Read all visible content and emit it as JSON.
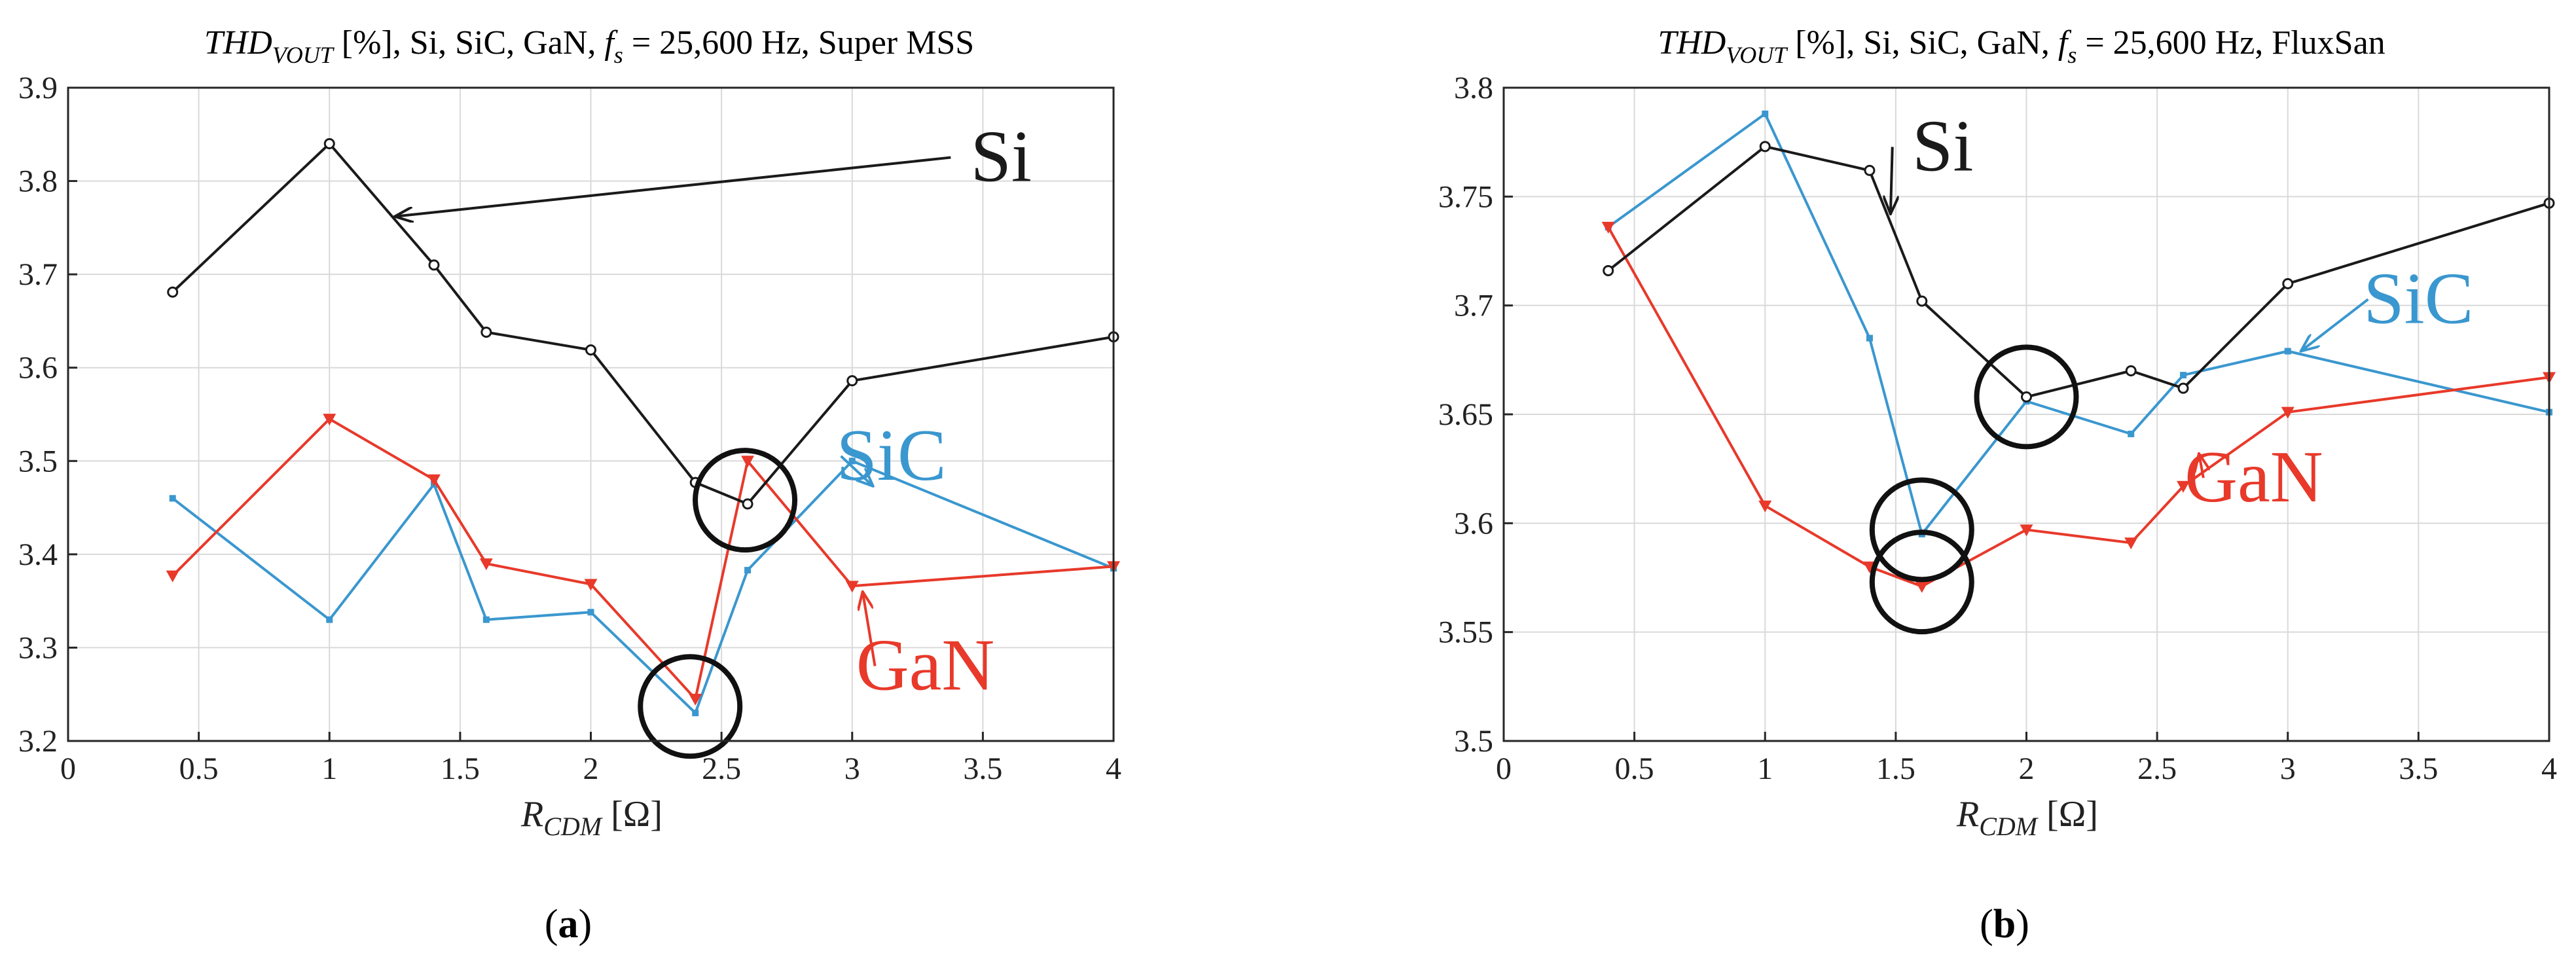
{
  "chart_data": [
    {
      "type": "line",
      "title": {
        "main": "THD",
        "sub": "VOUT",
        "rest": " [%], Si, SiC, GaN, ",
        "fs_main": "f",
        "fs_sub": "s",
        "fs_rest": " = 25,600 Hz, Super MSS"
      },
      "xlabel": {
        "main": "R",
        "sub": "CDM",
        "rest": " [Ω]"
      },
      "caption": {
        "open": "(",
        "letter": "a",
        "close": ")"
      },
      "xlim": [
        0,
        4
      ],
      "ylim": [
        3.2,
        3.9
      ],
      "xticks": [
        0,
        0.5,
        1,
        1.5,
        2,
        2.5,
        3,
        3.5,
        4
      ],
      "xtick_labels": [
        "0",
        "0.5",
        "1",
        "1.5",
        "2",
        "2.5",
        "3",
        "3.5",
        "4"
      ],
      "yticks": [
        3.2,
        3.3,
        3.4,
        3.5,
        3.6,
        3.7,
        3.8,
        3.9
      ],
      "ytick_labels": [
        "3.2",
        "3.3",
        "3.4",
        "3.5",
        "3.6",
        "3.7",
        "3.8",
        "3.9"
      ],
      "grid": true,
      "series": [
        {
          "name": "Si",
          "label": "Si",
          "color": "#1a1a1a",
          "marker": "circle",
          "x": [
            0.4,
            1,
            1.4,
            1.6,
            2,
            2.4,
            2.6,
            3,
            4
          ],
          "y": [
            3.681,
            3.84,
            3.71,
            3.638,
            3.619,
            3.477,
            3.454,
            3.586,
            3.633
          ]
        },
        {
          "name": "SiC",
          "label": "SiC",
          "color": "#3a97cf",
          "marker": "square",
          "x": [
            0.4,
            1,
            1.4,
            1.6,
            2,
            2.4,
            2.6,
            3,
            4
          ],
          "y": [
            3.46,
            3.33,
            3.475,
            3.33,
            3.338,
            3.23,
            3.383,
            3.5,
            3.385
          ]
        },
        {
          "name": "GaN",
          "label": "GaN",
          "color": "#e8392a",
          "marker": "triangle-down",
          "x": [
            0.4,
            1,
            1.4,
            1.6,
            2,
            2.4,
            2.6,
            3,
            4
          ],
          "y": [
            3.377,
            3.545,
            3.48,
            3.39,
            3.368,
            3.245,
            3.5,
            3.366,
            3.387
          ]
        }
      ],
      "annotations": [
        {
          "series": "Si",
          "text_x": 3.57,
          "text_y": 3.8,
          "arrow_to_x": 1.25,
          "arrow_to_y": 3.762
        },
        {
          "series": "SiC",
          "text_x": 3.15,
          "text_y": 3.48,
          "arrow_to_x": 3.08,
          "arrow_to_y": 3.473
        },
        {
          "series": "GaN",
          "text_x": 3.28,
          "text_y": 3.255,
          "arrow_to_x": 3.04,
          "arrow_to_y": 3.36
        }
      ],
      "circles": [
        {
          "x": 2.59,
          "y": 3.458
        },
        {
          "x": 2.38,
          "y": 3.237
        }
      ]
    },
    {
      "type": "line",
      "title": {
        "main": "THD",
        "sub": "VOUT",
        "rest": " [%], Si, SiC, GaN, ",
        "fs_main": "f",
        "fs_sub": "s",
        "fs_rest": " = 25,600 Hz, FluxSan"
      },
      "xlabel": {
        "main": "R",
        "sub": "CDM",
        "rest": " [Ω]"
      },
      "caption": {
        "open": "(",
        "letter": "b",
        "close": ")"
      },
      "xlim": [
        0,
        4
      ],
      "ylim": [
        3.5,
        3.8
      ],
      "xticks": [
        0,
        0.5,
        1,
        1.5,
        2,
        2.5,
        3,
        3.5,
        4
      ],
      "xtick_labels": [
        "0",
        "0.5",
        "1",
        "1.5",
        "2",
        "2.5",
        "3",
        "3.5",
        "4"
      ],
      "yticks": [
        3.5,
        3.55,
        3.6,
        3.65,
        3.7,
        3.75,
        3.8
      ],
      "ytick_labels": [
        "3.5",
        "3.55",
        "3.6",
        "3.65",
        "3.7",
        "3.75",
        "3.8"
      ],
      "grid": true,
      "series": [
        {
          "name": "Si",
          "label": "Si",
          "color": "#1a1a1a",
          "marker": "circle",
          "x": [
            0.4,
            1,
            1.4,
            1.6,
            2,
            2.4,
            2.6,
            3,
            4
          ],
          "y": [
            3.716,
            3.773,
            3.762,
            3.702,
            3.658,
            3.67,
            3.662,
            3.71,
            3.747
          ]
        },
        {
          "name": "SiC",
          "label": "SiC",
          "color": "#3a97cf",
          "marker": "square",
          "x": [
            0.4,
            1,
            1.4,
            1.6,
            2,
            2.4,
            2.6,
            3,
            4
          ],
          "y": [
            3.736,
            3.788,
            3.685,
            3.595,
            3.656,
            3.641,
            3.668,
            3.679,
            3.651
          ]
        },
        {
          "name": "GaN",
          "label": "GaN",
          "color": "#e8392a",
          "marker": "triangle-down",
          "x": [
            0.4,
            1,
            1.4,
            1.6,
            2,
            2.4,
            2.6,
            3,
            4
          ],
          "y": [
            3.736,
            3.608,
            3.58,
            3.571,
            3.597,
            3.591,
            3.617,
            3.651,
            3.667
          ]
        }
      ],
      "annotations": [
        {
          "series": "Si",
          "text_x": 1.68,
          "text_y": 3.762,
          "arrow_to_x": 1.48,
          "arrow_to_y": 3.742
        },
        {
          "series": "SiC",
          "text_x": 3.5,
          "text_y": 3.692,
          "arrow_to_x": 3.05,
          "arrow_to_y": 3.679
        },
        {
          "series": "GaN",
          "text_x": 2.87,
          "text_y": 3.61,
          "arrow_to_x": 2.66,
          "arrow_to_y": 3.632
        }
      ],
      "circles": [
        {
          "x": 2.0,
          "y": 3.658
        },
        {
          "x": 1.6,
          "y": 3.597
        },
        {
          "x": 1.6,
          "y": 3.573
        }
      ]
    }
  ]
}
